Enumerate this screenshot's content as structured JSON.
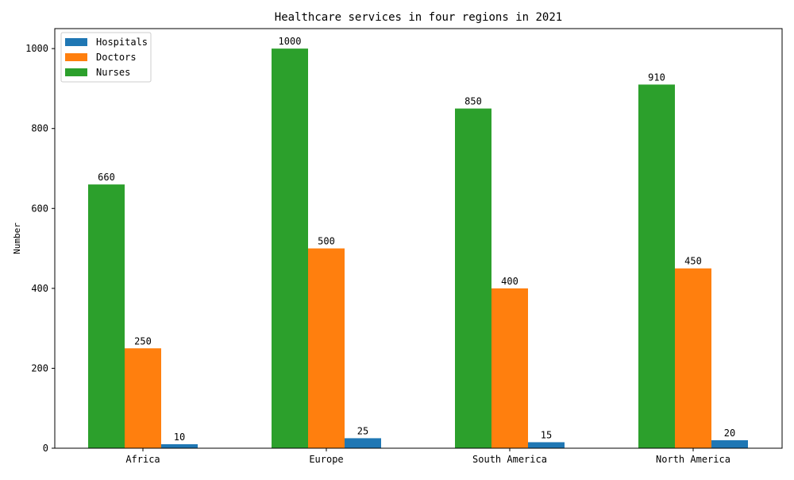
{
  "chart_data": {
    "type": "bar",
    "title": "Healthcare services in four regions in 2021",
    "xlabel": "",
    "ylabel": "Number",
    "categories": [
      "Africa",
      "Europe",
      "South America",
      "North America"
    ],
    "series": [
      {
        "name": "Nurses",
        "values": [
          660,
          1000,
          850,
          910
        ],
        "color": "#2ca02c"
      },
      {
        "name": "Doctors",
        "values": [
          250,
          500,
          400,
          450
        ],
        "color": "#ff7f0e"
      },
      {
        "name": "Hospitals",
        "values": [
          10,
          25,
          15,
          20
        ],
        "color": "#1f77b4"
      }
    ],
    "legend_order": [
      "Hospitals",
      "Doctors",
      "Nurses"
    ],
    "legend_position": "upper-left",
    "ylim": [
      0,
      1050
    ],
    "yticks": [
      0,
      200,
      400,
      600,
      800,
      1000
    ],
    "grid": false
  }
}
